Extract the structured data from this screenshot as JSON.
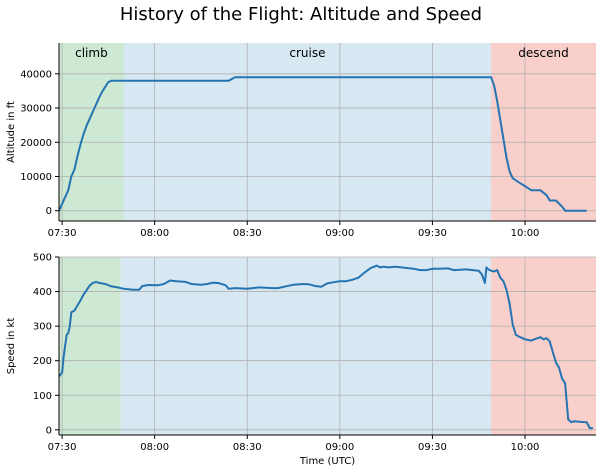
{
  "chart_data": [
    {
      "type": "line",
      "title": "History of the Flight: Altitude and Speed",
      "xlabel": "",
      "ylabel": "Altitude in ft",
      "xlim": [
        "07:29",
        "10:23"
      ],
      "ylim": [
        -3000,
        49000
      ],
      "grid": true,
      "yticks": [
        0,
        10000,
        20000,
        30000,
        40000
      ],
      "xticks": [
        "07:30",
        "08:00",
        "08:30",
        "09:00",
        "09:30",
        "10:00"
      ],
      "phases": [
        {
          "name": "climb",
          "start": "07:29",
          "end": "07:50",
          "color": "#cde8d3"
        },
        {
          "name": "cruise",
          "start": "07:50",
          "end": "09:49",
          "color": "#d8e8f3"
        },
        {
          "name": "descend",
          "start": "09:49",
          "end": "10:23",
          "color": "#f8cfcb"
        }
      ],
      "series": [
        {
          "color": "#2474b2",
          "points": [
            [
              "07:29",
              0
            ],
            [
              "07:30",
              2000
            ],
            [
              "07:31",
              4000
            ],
            [
              "07:32",
              6000
            ],
            [
              "07:33",
              10000
            ],
            [
              "07:34",
              12000
            ],
            [
              "07:35",
              16000
            ],
            [
              "07:36",
              19500
            ],
            [
              "07:37",
              22500
            ],
            [
              "07:38",
              25000
            ],
            [
              "07:39",
              27000
            ],
            [
              "07:40",
              29000
            ],
            [
              "07:41",
              31000
            ],
            [
              "07:42",
              33000
            ],
            [
              "07:43",
              34800
            ],
            [
              "07:44",
              36200
            ],
            [
              "07:45",
              37600
            ],
            [
              "07:46",
              38000
            ],
            [
              "07:50",
              38000
            ],
            [
              "08:10",
              38000
            ],
            [
              "08:24",
              38000
            ],
            [
              "08:26",
              39000
            ],
            [
              "08:40",
              39000
            ],
            [
              "09:00",
              39000
            ],
            [
              "09:20",
              39000
            ],
            [
              "09:40",
              39000
            ],
            [
              "09:49",
              39000
            ],
            [
              "09:50",
              36500
            ],
            [
              "09:51",
              32000
            ],
            [
              "09:52",
              26500
            ],
            [
              "09:53",
              21000
            ],
            [
              "09:54",
              15500
            ],
            [
              "09:55",
              11500
            ],
            [
              "09:56",
              9500
            ],
            [
              "09:58",
              8300
            ],
            [
              "10:00",
              7200
            ],
            [
              "10:02",
              6000
            ],
            [
              "10:05",
              6000
            ],
            [
              "10:07",
              4500
            ],
            [
              "10:08",
              3000
            ],
            [
              "10:10",
              3000
            ],
            [
              "10:12",
              1200
            ],
            [
              "10:13",
              0
            ],
            [
              "10:17",
              0
            ],
            [
              "10:20",
              0
            ]
          ]
        }
      ],
      "annotations": [
        "climb",
        "cruise",
        "descend"
      ]
    },
    {
      "type": "line",
      "title": "",
      "xlabel": "Time (UTC)",
      "ylabel": "Speed in kt",
      "xlim": [
        "07:29",
        "10:23"
      ],
      "ylim": [
        -15,
        500
      ],
      "grid": true,
      "yticks": [
        0,
        100,
        200,
        300,
        400,
        500
      ],
      "xticks": [
        "07:30",
        "08:00",
        "08:30",
        "09:00",
        "09:30",
        "10:00"
      ],
      "phases": [
        {
          "name": "climb",
          "start": "07:29",
          "end": "07:49",
          "color": "#cde8d3"
        },
        {
          "name": "cruise",
          "start": "07:49",
          "end": "09:49",
          "color": "#d8e8f3"
        },
        {
          "name": "descend",
          "start": "09:49",
          "end": "10:23",
          "color": "#f8cfcb"
        }
      ],
      "series": [
        {
          "color": "#2474b2",
          "points": [
            [
              "07:29",
              155
            ],
            [
              "07:30",
              165
            ],
            [
              "07:30.5",
              210
            ],
            [
              "07:31",
              245
            ],
            [
              "07:31.5",
              275
            ],
            [
              "07:32",
              280
            ],
            [
              "07:32.5",
              300
            ],
            [
              "07:33",
              340
            ],
            [
              "07:34",
              345
            ],
            [
              "07:35",
              360
            ],
            [
              "07:36",
              375
            ],
            [
              "07:37",
              392
            ],
            [
              "07:38",
              405
            ],
            [
              "07:39",
              418
            ],
            [
              "07:40",
              425
            ],
            [
              "07:41",
              428
            ],
            [
              "07:42",
              425
            ],
            [
              "07:44",
              422
            ],
            [
              "07:46",
              415
            ],
            [
              "07:48",
              412
            ],
            [
              "07:50",
              408
            ],
            [
              "07:53",
              405
            ],
            [
              "07:55",
              405
            ],
            [
              "07:56",
              416
            ],
            [
              "07:58",
              419
            ],
            [
              "08:01",
              418
            ],
            [
              "08:03",
              422
            ],
            [
              "08:05",
              432
            ],
            [
              "08:07",
              430
            ],
            [
              "08:10",
              428
            ],
            [
              "08:12",
              422
            ],
            [
              "08:15",
              420
            ],
            [
              "08:17",
              422
            ],
            [
              "08:19",
              426
            ],
            [
              "08:21",
              424
            ],
            [
              "08:23",
              418
            ],
            [
              "08:24",
              408
            ],
            [
              "08:26",
              410
            ],
            [
              "08:30",
              408
            ],
            [
              "08:34",
              412
            ],
            [
              "08:38",
              410
            ],
            [
              "08:40",
              410
            ],
            [
              "08:42",
              414
            ],
            [
              "08:45",
              420
            ],
            [
              "08:48",
              422
            ],
            [
              "08:50",
              421
            ],
            [
              "08:52",
              416
            ],
            [
              "08:54",
              414
            ],
            [
              "08:56",
              424
            ],
            [
              "08:58",
              427
            ],
            [
              "09:00",
              430
            ],
            [
              "09:02",
              430
            ],
            [
              "09:04",
              434
            ],
            [
              "09:06",
              440
            ],
            [
              "09:08",
              455
            ],
            [
              "09:10",
              468
            ],
            [
              "09:12",
              475
            ],
            [
              "09:13",
              470
            ],
            [
              "09:14",
              472
            ],
            [
              "09:16",
              470
            ],
            [
              "09:18",
              472
            ],
            [
              "09:20",
              470
            ],
            [
              "09:22",
              468
            ],
            [
              "09:24",
              466
            ],
            [
              "09:26",
              462
            ],
            [
              "09:28",
              462
            ],
            [
              "09:30",
              466
            ],
            [
              "09:32",
              466
            ],
            [
              "09:35",
              467
            ],
            [
              "09:37",
              462
            ],
            [
              "09:39",
              463
            ],
            [
              "09:41",
              464
            ],
            [
              "09:43",
              462
            ],
            [
              "09:45",
              460
            ],
            [
              "09:46",
              450
            ],
            [
              "09:47",
              425
            ],
            [
              "09:47.5",
              470
            ],
            [
              "09:48",
              465
            ],
            [
              "09:49",
              460
            ],
            [
              "09:50",
              458
            ],
            [
              "09:51",
              462
            ],
            [
              "09:52",
              440
            ],
            [
              "09:53",
              430
            ],
            [
              "09:54",
              405
            ],
            [
              "09:55",
              365
            ],
            [
              "09:56",
              305
            ],
            [
              "09:57",
              275
            ],
            [
              "09:58",
              270
            ],
            [
              "10:00",
              262
            ],
            [
              "10:02",
              258
            ],
            [
              "10:03",
              262
            ],
            [
              "10:05",
              268
            ],
            [
              "10:06",
              262
            ],
            [
              "10:07",
              265
            ],
            [
              "10:08",
              256
            ],
            [
              "10:09",
              225
            ],
            [
              "10:10",
              195
            ],
            [
              "10:11",
              180
            ],
            [
              "10:12",
              148
            ],
            [
              "10:13",
              135
            ],
            [
              "10:14",
              30
            ],
            [
              "10:15",
              22
            ],
            [
              "10:16",
              25
            ],
            [
              "10:18",
              23
            ],
            [
              "10:20",
              22
            ],
            [
              "10:21",
              5
            ],
            [
              "10:22",
              5
            ]
          ]
        }
      ],
      "annotations": []
    }
  ]
}
